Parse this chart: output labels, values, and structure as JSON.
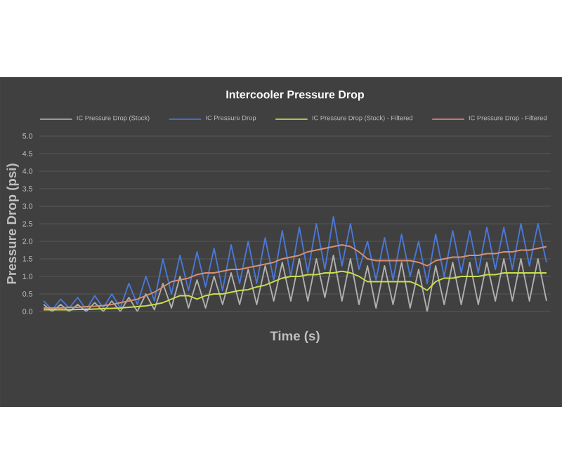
{
  "chart_data": {
    "type": "line",
    "title": "Intercooler Pressure Drop",
    "xlabel": "Time (s)",
    "ylabel": "Pressure Drop (psi)",
    "categories": [
      null,
      null,
      null,
      null,
      null,
      null,
      null,
      null,
      null,
      null,
      null,
      null,
      null,
      null,
      null,
      null,
      null,
      null,
      null,
      null,
      null,
      null,
      null,
      null,
      null,
      null,
      null,
      null,
      null,
      null,
      null,
      null,
      null,
      null,
      null,
      null,
      null,
      null,
      null,
      null,
      null,
      null,
      null,
      null,
      null,
      null,
      null,
      null,
      null,
      null,
      null,
      null,
      null,
      null,
      null,
      null,
      null,
      null,
      null,
      null
    ],
    "ylim": [
      0,
      5
    ],
    "yticks": [
      {
        "value": 0,
        "label": "0.0"
      },
      {
        "value": 0.5,
        "label": "0.5"
      },
      {
        "value": 1,
        "label": "1.0"
      },
      {
        "value": 1.5,
        "label": "1.5"
      },
      {
        "value": 2,
        "label": "2.0"
      },
      {
        "value": 2.5,
        "label": "2.5"
      },
      {
        "value": 3,
        "label": "3.0"
      },
      {
        "value": 3.5,
        "label": "3.5"
      },
      {
        "value": 4,
        "label": "4.0"
      },
      {
        "value": 4.5,
        "label": "4.5"
      },
      {
        "value": 5,
        "label": "5.0"
      }
    ],
    "grid": "y",
    "legend": "top",
    "series": [
      {
        "name": "IC Pressure Drop (Stock)",
        "color": "#b0b0b0",
        "values": [
          0.2,
          0.0,
          0.2,
          0.0,
          0.2,
          0.0,
          0.25,
          0.0,
          0.3,
          0.0,
          0.4,
          0.0,
          0.5,
          0.05,
          0.8,
          0.1,
          1.0,
          0.1,
          0.9,
          0.1,
          1.0,
          0.2,
          1.1,
          0.2,
          1.2,
          0.2,
          1.3,
          0.3,
          1.4,
          0.3,
          1.5,
          0.3,
          1.5,
          0.4,
          1.6,
          0.3,
          1.5,
          0.2,
          1.3,
          0.1,
          1.3,
          0.2,
          1.4,
          0.1,
          1.2,
          0.0,
          1.3,
          0.2,
          1.4,
          0.2,
          1.4,
          0.2,
          1.4,
          0.3,
          1.5,
          0.3,
          1.5,
          0.3,
          1.5,
          0.3
        ]
      },
      {
        "name": "IC Pressure Drop",
        "color": "#4a78d8",
        "values": [
          0.3,
          0.05,
          0.35,
          0.1,
          0.4,
          0.05,
          0.45,
          0.1,
          0.5,
          0.1,
          0.8,
          0.2,
          1.0,
          0.3,
          1.5,
          0.5,
          1.6,
          0.6,
          1.7,
          0.7,
          1.8,
          0.6,
          1.9,
          0.8,
          2.0,
          0.8,
          2.1,
          0.9,
          2.3,
          1.0,
          2.4,
          1.1,
          2.5,
          1.2,
          2.7,
          1.3,
          2.5,
          1.2,
          2.0,
          0.9,
          2.1,
          0.9,
          2.2,
          1.0,
          2.0,
          0.8,
          2.2,
          1.0,
          2.3,
          1.1,
          2.3,
          1.1,
          2.4,
          1.2,
          2.4,
          1.2,
          2.5,
          1.3,
          2.5,
          1.4
        ]
      },
      {
        "name": "IC Pressure Drop (Stock) - Filtered",
        "color": "#c8e04a",
        "values": [
          0.05,
          0.05,
          0.05,
          0.05,
          0.06,
          0.06,
          0.07,
          0.08,
          0.09,
          0.1,
          0.12,
          0.14,
          0.16,
          0.2,
          0.25,
          0.35,
          0.45,
          0.45,
          0.35,
          0.45,
          0.5,
          0.5,
          0.55,
          0.6,
          0.62,
          0.7,
          0.75,
          0.85,
          0.95,
          1.0,
          1.0,
          1.05,
          1.05,
          1.1,
          1.1,
          1.15,
          1.1,
          1.0,
          0.85,
          0.85,
          0.85,
          0.85,
          0.85,
          0.85,
          0.75,
          0.6,
          0.85,
          0.95,
          0.95,
          1.0,
          1.0,
          1.0,
          1.05,
          1.05,
          1.1,
          1.1,
          1.1,
          1.1,
          1.1,
          1.1
        ]
      },
      {
        "name": "IC Pressure Drop - Filtered",
        "color": "#d89070",
        "values": [
          0.1,
          0.1,
          0.1,
          0.12,
          0.12,
          0.14,
          0.15,
          0.17,
          0.2,
          0.25,
          0.3,
          0.35,
          0.45,
          0.55,
          0.7,
          0.85,
          0.9,
          0.95,
          1.05,
          1.1,
          1.1,
          1.15,
          1.2,
          1.2,
          1.25,
          1.3,
          1.35,
          1.4,
          1.5,
          1.55,
          1.6,
          1.7,
          1.75,
          1.8,
          1.85,
          1.9,
          1.85,
          1.7,
          1.5,
          1.45,
          1.45,
          1.45,
          1.45,
          1.45,
          1.4,
          1.3,
          1.45,
          1.5,
          1.55,
          1.55,
          1.6,
          1.6,
          1.65,
          1.65,
          1.7,
          1.7,
          1.75,
          1.75,
          1.8,
          1.85
        ]
      }
    ]
  }
}
